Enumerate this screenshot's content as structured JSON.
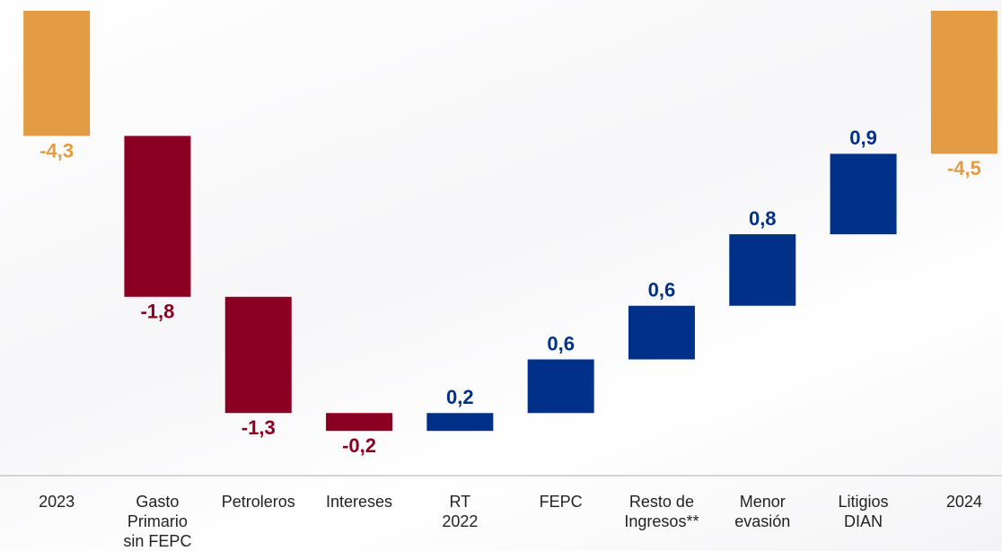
{
  "chart_data": {
    "type": "waterfall",
    "categories": [
      "2023",
      "Gasto\nPrimario\nsin FEPC",
      "Petroleros",
      "Intereses",
      "RT\n2022",
      "FEPC",
      "Resto de\nIngresos**",
      "Menor\nevasión",
      "Litigios\nDIAN",
      "2024"
    ],
    "values": [
      -4.3,
      -1.8,
      -1.3,
      -0.2,
      0.2,
      0.6,
      0.6,
      0.8,
      0.9,
      -4.5
    ],
    "value_labels": [
      "-4,3",
      "-1,8",
      "-1,3",
      "-0,2",
      "0,2",
      "0,6",
      "0,6",
      "0,8",
      "0,9",
      "-4,5"
    ],
    "is_total": [
      true,
      false,
      false,
      false,
      false,
      false,
      false,
      false,
      false,
      true
    ],
    "colors": {
      "total": "#e39c43",
      "decrease": "#8b0022",
      "increase": "#003087"
    },
    "ylim": [
      -8.1,
      -2.9
    ]
  }
}
